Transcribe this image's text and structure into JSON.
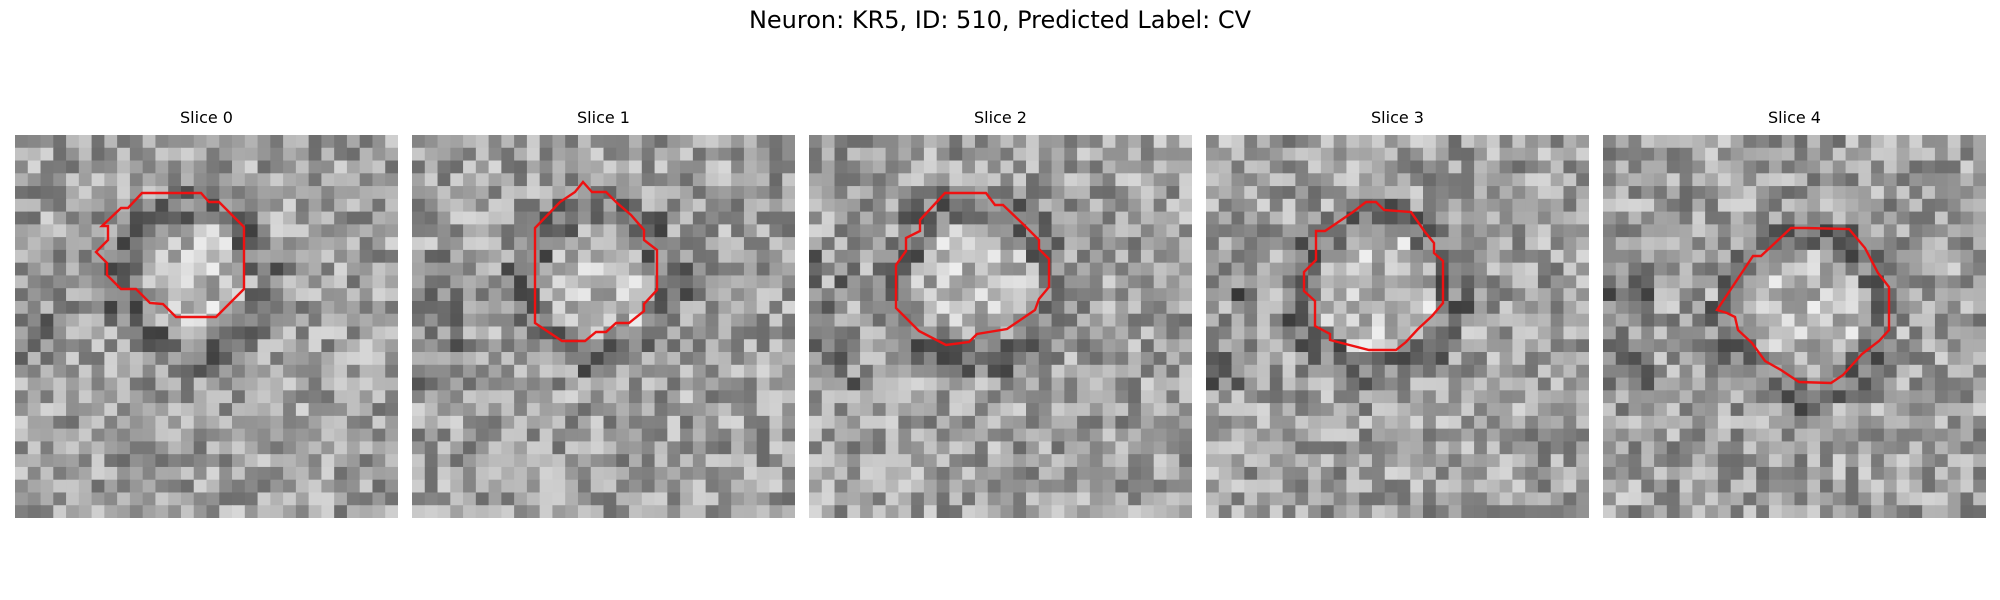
{
  "title": "Neuron: KR5, ID: 510, Predicted Label: CV",
  "contour_color": "#ee1111",
  "panels": [
    {
      "label": "Slice 0",
      "seed": 11
    },
    {
      "label": "Slice 1",
      "seed": 23
    },
    {
      "label": "Slice 2",
      "seed": 37
    },
    {
      "label": "Slice 3",
      "seed": 41
    },
    {
      "label": "Slice 4",
      "seed": 59
    }
  ]
}
